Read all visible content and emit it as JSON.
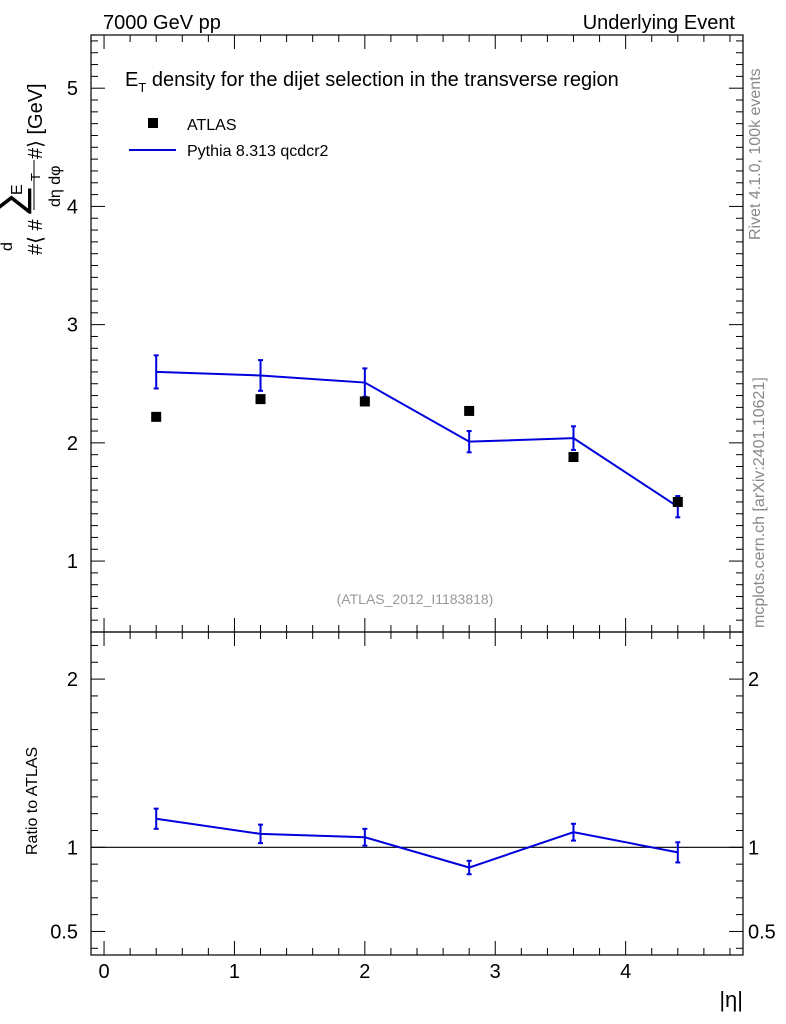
{
  "header": {
    "left": "7000 GeV pp",
    "right": "Underlying Event"
  },
  "side": {
    "rivet": "Rivet 4.1.0,  100k events",
    "mcplots": "mcplots.cern.ch [arXiv:2401.10621]"
  },
  "watermark": "(ATLAS_2012_I1183818)",
  "chart_data": [
    {
      "type": "scatter",
      "title": "E_T density  for the dijet selection in the transverse region",
      "title_main": "E",
      "title_sub": "T",
      "title_rest": " density  for the dijet selection in the transverse region",
      "xlabel": "|η|",
      "ylabel": "#⟨ #d∑E_T / dη dφ #⟩ [GeV]",
      "xlim": [
        -0.1,
        4.9
      ],
      "ylim": [
        0.4,
        5.45
      ],
      "yticks": [
        1,
        2,
        3,
        4,
        5
      ],
      "xticks": [
        0,
        1,
        2,
        3,
        4
      ],
      "x": [
        0.4,
        1.2,
        2.0,
        2.8,
        3.6,
        4.4
      ],
      "series": [
        {
          "name": "ATLAS",
          "style": "markers",
          "color": "#000000",
          "values": [
            2.22,
            2.37,
            2.35,
            2.27,
            1.88,
            1.5
          ]
        },
        {
          "name": "Pythia 8.313 qcdcr2",
          "style": "line",
          "color": "#0000dd",
          "values": [
            2.6,
            2.57,
            2.51,
            2.01,
            2.04,
            1.46
          ],
          "errors": [
            0.14,
            0.13,
            0.12,
            0.09,
            0.1,
            0.09
          ]
        }
      ]
    },
    {
      "type": "line",
      "ylabel": "Ratio to ATLAS",
      "xlabel": "|η|",
      "xlim": [
        -0.1,
        4.9
      ],
      "ylim": [
        0.36,
        2.28
      ],
      "yticks": [
        0.5,
        1,
        2
      ],
      "reference": 1,
      "x": [
        0.4,
        1.2,
        2.0,
        2.8,
        3.6,
        4.4
      ],
      "series": [
        {
          "name": "Pythia 8.313 qcdcr2 / ATLAS",
          "color": "#0000dd",
          "values": [
            1.17,
            1.08,
            1.06,
            0.88,
            1.09,
            0.97
          ],
          "errors": [
            0.06,
            0.055,
            0.05,
            0.04,
            0.05,
            0.06
          ]
        }
      ]
    }
  ]
}
